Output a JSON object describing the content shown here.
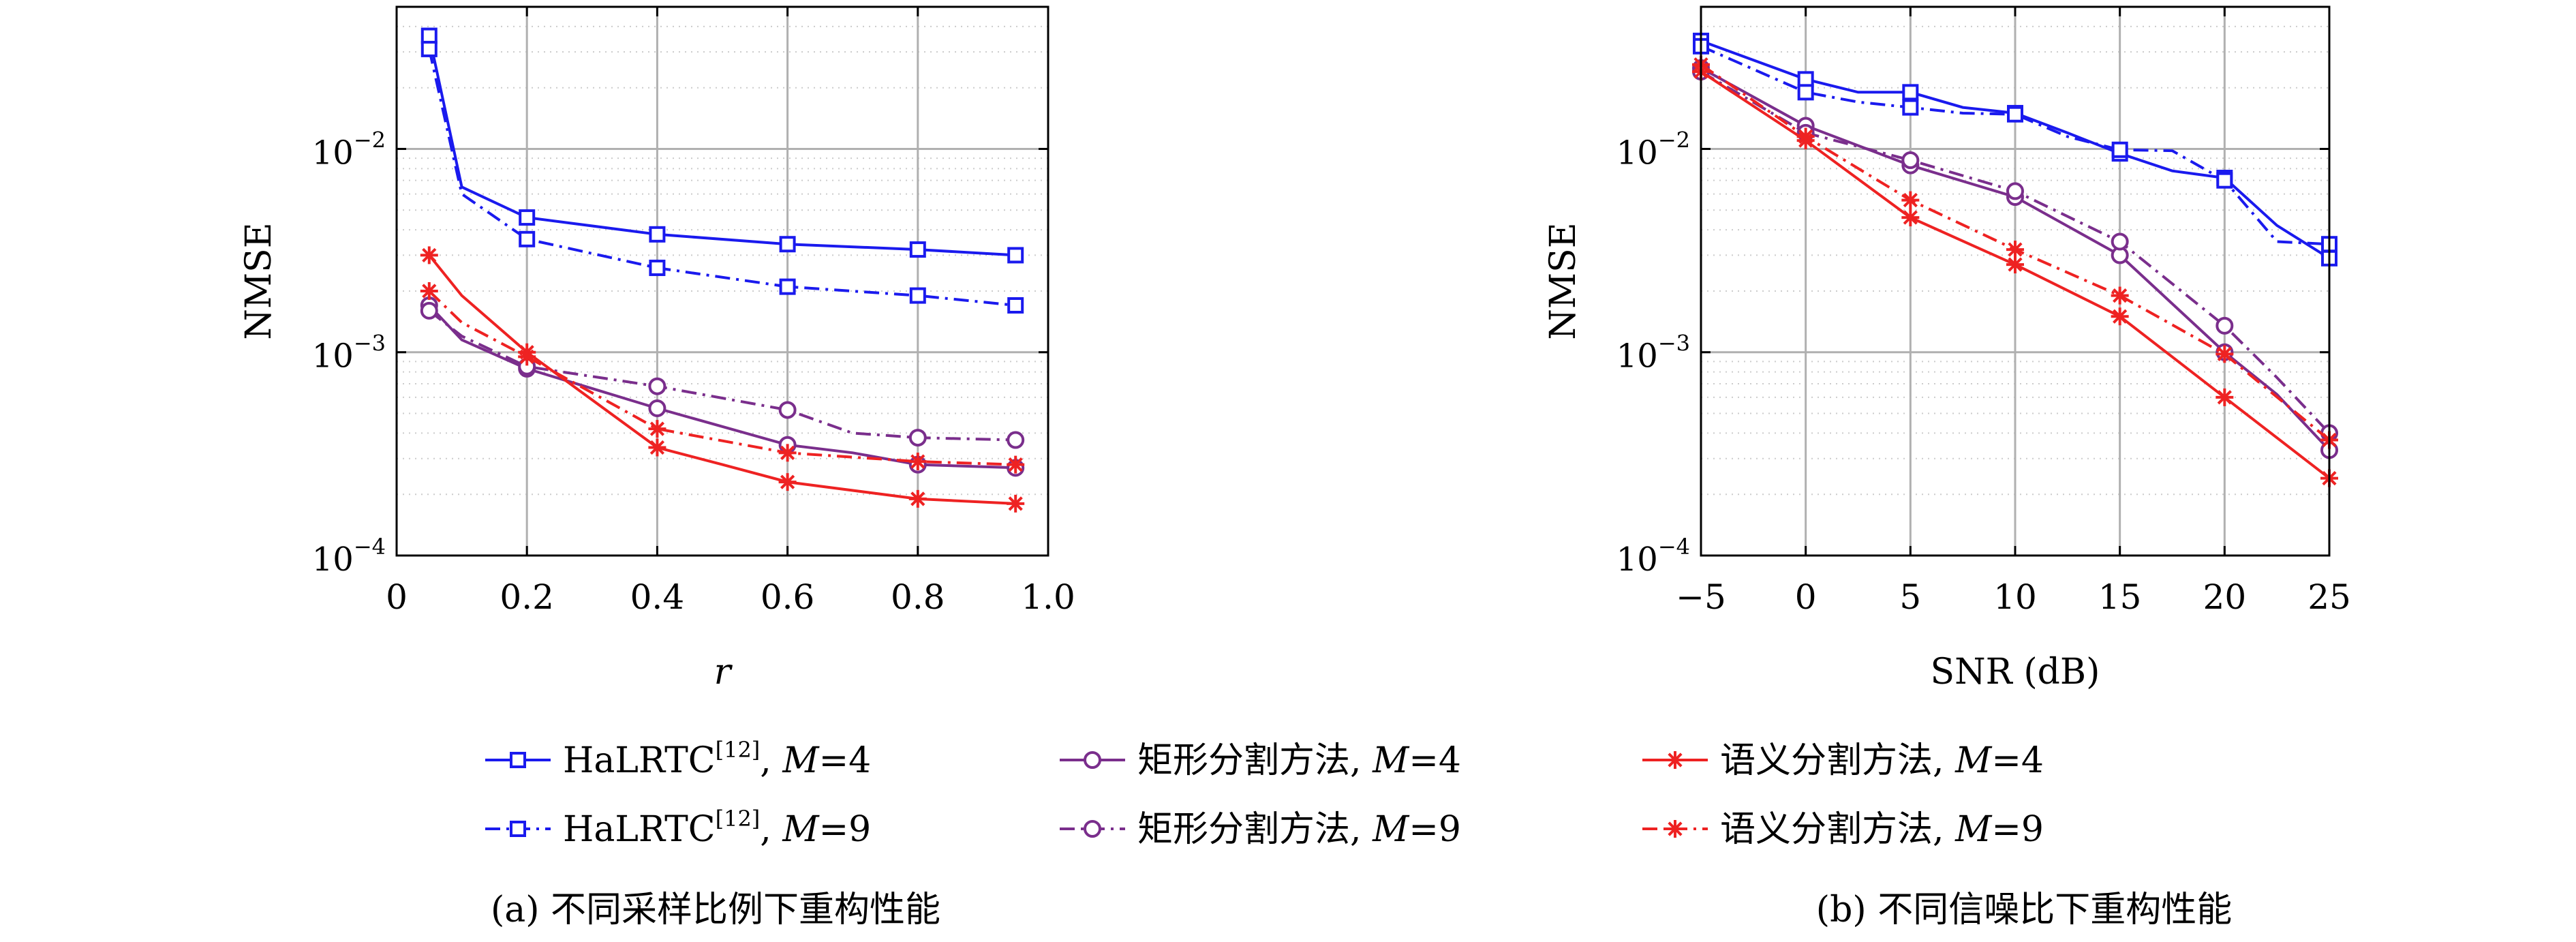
{
  "colors": {
    "blue": "#1a1aee",
    "purple": "#7a2e8c",
    "red": "#ee2222",
    "grid": "#b0b0b0",
    "minor_grid": "#cccccc"
  },
  "legend": {
    "rows": [
      [
        {
          "series_key": "halrtc_m4",
          "base": "HaLRTC",
          "sup": "[12]",
          "suffix": ", ",
          "var": "M",
          "value": "=4"
        },
        {
          "series_key": "rect_m4",
          "base": "矩形分割方法",
          "sup": "",
          "suffix": ", ",
          "var": "M",
          "value": "=4"
        },
        {
          "series_key": "sem_m4",
          "base": "语义分割方法",
          "sup": "",
          "suffix": ", ",
          "var": "M",
          "value": "=4"
        }
      ],
      [
        {
          "series_key": "halrtc_m9",
          "base": "HaLRTC",
          "sup": "[12]",
          "suffix": ", ",
          "var": "M",
          "value": "=9"
        },
        {
          "series_key": "rect_m9",
          "base": "矩形分割方法",
          "sup": "",
          "suffix": ", ",
          "var": "M",
          "value": "=9"
        },
        {
          "series_key": "sem_m9",
          "base": "语义分割方法",
          "sup": "",
          "suffix": ", ",
          "var": "M",
          "value": "=9"
        }
      ]
    ]
  },
  "series_style": {
    "halrtc_m4": {
      "color": "#1a1aee",
      "marker": "square",
      "dash": "solid"
    },
    "halrtc_m9": {
      "color": "#1a1aee",
      "marker": "square",
      "dash": "dashdot"
    },
    "rect_m4": {
      "color": "#7a2e8c",
      "marker": "circle",
      "dash": "solid"
    },
    "rect_m9": {
      "color": "#7a2e8c",
      "marker": "circle",
      "dash": "dashdot"
    },
    "sem_m4": {
      "color": "#ee2222",
      "marker": "asterisk",
      "dash": "solid"
    },
    "sem_m9": {
      "color": "#ee2222",
      "marker": "asterisk",
      "dash": "dashdot"
    }
  },
  "chart_data": [
    {
      "type": "line",
      "caption": "(a) 不同采样比例下重构性能",
      "xlabel": "r",
      "ylabel": "NMSE",
      "yscale": "log",
      "xlim": [
        0,
        1.0
      ],
      "ylim": [
        0.0001,
        0.05
      ],
      "xticks": [
        0,
        0.2,
        0.4,
        0.6,
        0.8,
        1.0
      ],
      "xtick_labels": [
        "0",
        "0.2",
        "0.4",
        "0.6",
        "0.8",
        "1.0"
      ],
      "yticks": [
        0.0001,
        0.001,
        0.01
      ],
      "ytick_bases": [
        "10",
        "10",
        "10"
      ],
      "ytick_exps": [
        "−4",
        "−3",
        "−2"
      ],
      "grid": true,
      "series": [
        {
          "key": "halrtc_m4",
          "x": [
            0.05,
            0.1,
            0.2,
            0.4,
            0.6,
            0.8,
            0.95
          ],
          "y": [
            0.036,
            0.0065,
            0.0046,
            0.0038,
            0.0034,
            0.0032,
            0.003
          ],
          "markers": [
            0.05,
            0.2,
            0.4,
            0.6,
            0.8,
            0.95
          ]
        },
        {
          "key": "halrtc_m9",
          "x": [
            0.05,
            0.1,
            0.2,
            0.4,
            0.6,
            0.8,
            0.95
          ],
          "y": [
            0.031,
            0.006,
            0.0036,
            0.0026,
            0.0021,
            0.0019,
            0.0017
          ],
          "markers": [
            0.05,
            0.2,
            0.4,
            0.6,
            0.8,
            0.95
          ]
        },
        {
          "key": "rect_m4",
          "x": [
            0.05,
            0.1,
            0.2,
            0.4,
            0.6,
            0.7,
            0.8,
            0.95
          ],
          "y": [
            0.0017,
            0.00115,
            0.00083,
            0.00053,
            0.00035,
            0.00032,
            0.00028,
            0.00027
          ],
          "markers": [
            0.05,
            0.2,
            0.4,
            0.6,
            0.8,
            0.95
          ]
        },
        {
          "key": "rect_m9",
          "x": [
            0.05,
            0.1,
            0.2,
            0.4,
            0.6,
            0.7,
            0.8,
            0.95
          ],
          "y": [
            0.0016,
            0.0012,
            0.00085,
            0.00068,
            0.00052,
            0.0004,
            0.00038,
            0.00037
          ],
          "markers": [
            0.05,
            0.2,
            0.4,
            0.6,
            0.8,
            0.95
          ]
        },
        {
          "key": "sem_m4",
          "x": [
            0.05,
            0.1,
            0.2,
            0.4,
            0.5,
            0.6,
            0.8,
            0.95
          ],
          "y": [
            0.003,
            0.0019,
            0.001,
            0.00034,
            0.00028,
            0.00023,
            0.00019,
            0.00018
          ],
          "markers": [
            0.05,
            0.2,
            0.4,
            0.6,
            0.8,
            0.95
          ]
        },
        {
          "key": "sem_m9",
          "x": [
            0.05,
            0.1,
            0.2,
            0.4,
            0.6,
            0.8,
            0.95
          ],
          "y": [
            0.002,
            0.0014,
            0.00095,
            0.00042,
            0.00032,
            0.00029,
            0.00028
          ],
          "markers": [
            0.05,
            0.2,
            0.4,
            0.6,
            0.8,
            0.95
          ]
        }
      ]
    },
    {
      "type": "line",
      "caption": "(b) 不同信噪比下重构性能",
      "xlabel": "SNR (dB)",
      "ylabel": "NMSE",
      "yscale": "log",
      "xlim": [
        -5,
        25
      ],
      "ylim": [
        0.0001,
        0.05
      ],
      "xticks": [
        -5,
        0,
        5,
        10,
        15,
        20,
        25
      ],
      "xtick_labels": [
        "−5",
        "0",
        "5",
        "10",
        "15",
        "20",
        "25"
      ],
      "yticks": [
        0.0001,
        0.001,
        0.01
      ],
      "ytick_bases": [
        "10",
        "10",
        "10"
      ],
      "ytick_exps": [
        "−4",
        "−3",
        "−2"
      ],
      "grid": true,
      "series": [
        {
          "key": "halrtc_m4",
          "x": [
            -5,
            0,
            2.5,
            5,
            7.5,
            10,
            12.5,
            15,
            17.5,
            20,
            22.5,
            25
          ],
          "y": [
            0.034,
            0.022,
            0.019,
            0.019,
            0.016,
            0.015,
            0.012,
            0.0095,
            0.0078,
            0.0072,
            0.0042,
            0.0029
          ],
          "markers": [
            -5,
            0,
            5,
            10,
            15,
            20,
            25
          ]
        },
        {
          "key": "halrtc_m9",
          "x": [
            -5,
            0,
            2.5,
            5,
            7.5,
            10,
            12.5,
            15,
            17.5,
            20,
            22.5,
            25
          ],
          "y": [
            0.032,
            0.019,
            0.017,
            0.016,
            0.015,
            0.0148,
            0.0115,
            0.0099,
            0.0098,
            0.007,
            0.0035,
            0.0034
          ],
          "markers": [
            -5,
            0,
            5,
            10,
            15,
            20,
            25
          ]
        },
        {
          "key": "rect_m4",
          "x": [
            -5,
            0,
            5,
            10,
            15,
            20,
            22.5,
            25
          ],
          "y": [
            0.025,
            0.013,
            0.0083,
            0.0058,
            0.003,
            0.001,
            0.00062,
            0.00033
          ],
          "markers": [
            -5,
            0,
            5,
            10,
            15,
            20,
            25
          ]
        },
        {
          "key": "rect_m9",
          "x": [
            -5,
            0,
            5,
            10,
            15,
            20,
            22.5,
            25
          ],
          "y": [
            0.024,
            0.012,
            0.0088,
            0.0062,
            0.0035,
            0.00135,
            0.00075,
            0.0004
          ],
          "markers": [
            -5,
            0,
            5,
            10,
            15,
            20,
            25
          ]
        },
        {
          "key": "sem_m4",
          "x": [
            -5,
            0,
            5,
            10,
            15,
            20,
            25
          ],
          "y": [
            0.024,
            0.011,
            0.0046,
            0.0027,
            0.0015,
            0.0006,
            0.00024
          ],
          "markers": [
            -5,
            0,
            5,
            10,
            15,
            20,
            25
          ]
        },
        {
          "key": "sem_m9",
          "x": [
            -5,
            0,
            5,
            10,
            15,
            20,
            25
          ],
          "y": [
            0.026,
            0.0115,
            0.0056,
            0.0032,
            0.0019,
            0.00098,
            0.00037
          ],
          "markers": [
            -5,
            0,
            5,
            10,
            15,
            20,
            25
          ]
        }
      ]
    }
  ]
}
